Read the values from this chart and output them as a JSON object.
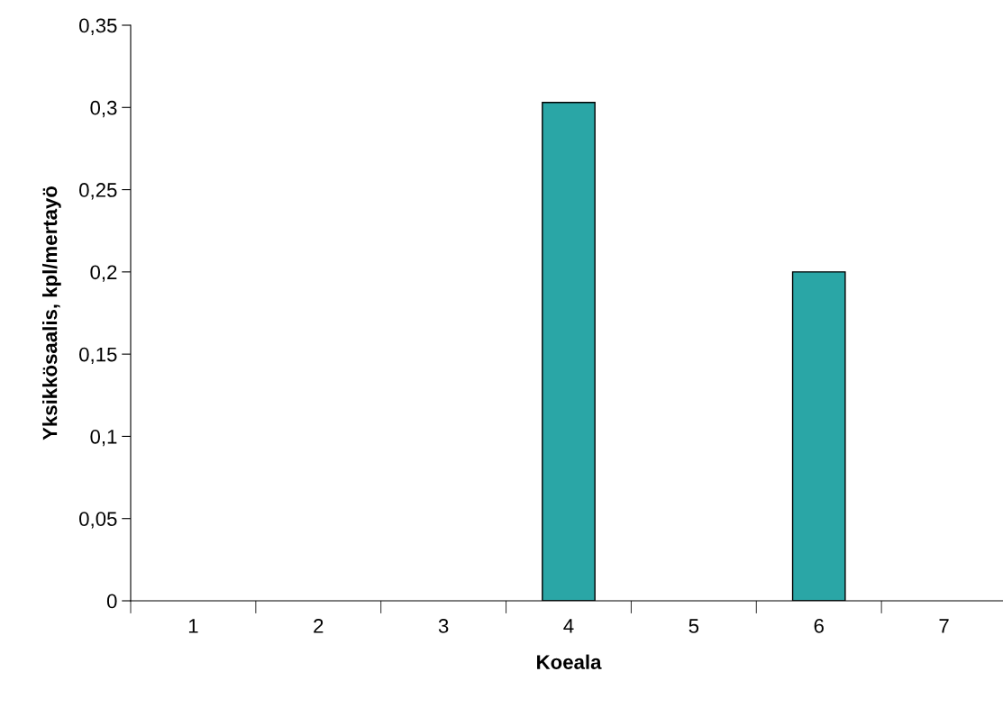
{
  "chart_data": {
    "type": "bar",
    "xlabel": "Koeala",
    "ylabel": "Yksikkösaalis, kpl/mertayö",
    "categories": [
      "1",
      "2",
      "3",
      "4",
      "5",
      "6",
      "7"
    ],
    "values": [
      0,
      0,
      0,
      0.303,
      0,
      0.2,
      0
    ],
    "color": "#2aa6a6",
    "ylim": [
      0,
      0.35
    ],
    "yticks": [
      0,
      {
        "value": 0.05,
        "label": "0,05"
      },
      {
        "value": 0.1,
        "label": "0,1"
      },
      {
        "value": 0.15,
        "label": "0,15"
      },
      {
        "value": 0.2,
        "label": "0,2"
      },
      {
        "value": 0.25,
        "label": "0,25"
      },
      {
        "value": 0.3,
        "label": "0,3"
      },
      {
        "value": 0.35,
        "label": "0,35"
      }
    ],
    "grid": false
  }
}
